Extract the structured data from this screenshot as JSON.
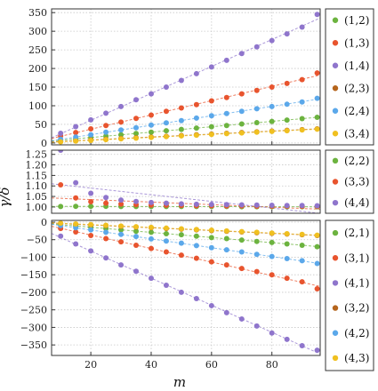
{
  "chart_data": [
    {
      "type": "scatter",
      "xlim": [
        7,
        96
      ],
      "ylim": [
        -5,
        360
      ],
      "xticks": [
        20,
        40,
        60,
        80
      ],
      "yticks": [
        0,
        50,
        100,
        150,
        200,
        250,
        300,
        350
      ],
      "ylabel": "",
      "x": [
        10,
        15,
        20,
        25,
        30,
        35,
        40,
        45,
        50,
        55,
        60,
        65,
        70,
        75,
        80,
        85,
        90,
        95
      ],
      "grid": true,
      "legend_position": "right",
      "series": [
        {
          "name": "(1,2)",
          "color": "#6cb33f",
          "values": [
            7.5,
            11,
            14.5,
            18.5,
            22,
            25.5,
            29,
            33,
            36.5,
            40,
            43.5,
            47,
            51,
            54.5,
            58,
            61.5,
            65.5,
            69
          ]
        },
        {
          "name": "(1,3)",
          "color": "#e8542e",
          "values": [
            19,
            28,
            38,
            47,
            56,
            66,
            75,
            85,
            94,
            103,
            113,
            122,
            132,
            141,
            150,
            160,
            170,
            188
          ]
        },
        {
          "name": "(1,4)",
          "color": "#8f75cc",
          "values": [
            26,
            44,
            62,
            80,
            98,
            116,
            132,
            150,
            168,
            186,
            204,
            222,
            240,
            258,
            275,
            293,
            311,
            345
          ]
        },
        {
          "name": "(2,3)",
          "color": "#b5651d",
          "values": [
            4,
            6,
            8,
            10,
            12,
            14,
            16,
            18,
            20,
            22,
            24,
            26,
            28,
            30,
            32,
            34,
            36,
            38
          ]
        },
        {
          "name": "(2,4)",
          "color": "#5ba8ea",
          "values": [
            10,
            16,
            22,
            29,
            35,
            41,
            48,
            54,
            60,
            67,
            73,
            79,
            85,
            92,
            98,
            104,
            110,
            120
          ]
        },
        {
          "name": "(3,4)",
          "color": "#f0c020",
          "values": [
            3,
            5,
            7,
            9,
            11,
            13,
            15,
            17,
            19,
            21,
            23,
            25,
            27,
            29,
            31,
            33,
            35,
            37
          ]
        }
      ]
    },
    {
      "type": "scatter",
      "xlim": [
        7,
        96
      ],
      "ylim": [
        0.97,
        1.27
      ],
      "xticks": [
        20,
        40,
        60,
        80
      ],
      "yticks": [
        1.0,
        1.05,
        1.1,
        1.15,
        1.2,
        1.25
      ],
      "ytick_labels": [
        "1.00",
        "1.05",
        "1.10",
        "1.15",
        "1.20",
        "1.25"
      ],
      "ylabel": "γ/δ",
      "x": [
        10,
        15,
        20,
        25,
        30,
        35,
        40,
        45,
        50,
        55,
        60,
        65,
        70,
        75,
        80,
        85,
        90,
        95
      ],
      "grid": true,
      "legend_position": "right",
      "series": [
        {
          "name": "(2,2)",
          "color": "#6cb33f",
          "values": [
            1.002,
            1.003,
            1.003,
            1.003,
            1.002,
            1.002,
            1.002,
            1.002,
            1.002,
            1.002,
            1.002,
            1.002,
            1.001,
            1.001,
            1.001,
            1.001,
            1.001,
            1.001
          ]
        },
        {
          "name": "(3,3)",
          "color": "#e8542e",
          "values": [
            1.105,
            1.043,
            1.025,
            1.018,
            1.014,
            1.011,
            1.009,
            1.008,
            1.007,
            1.006,
            1.006,
            1.005,
            1.005,
            1.004,
            1.004,
            1.004,
            1.003,
            1.003
          ]
        },
        {
          "name": "(4,4)",
          "color": "#8f75cc",
          "values": [
            1.27,
            1.115,
            1.065,
            1.045,
            1.033,
            1.026,
            1.021,
            1.018,
            1.015,
            1.013,
            1.012,
            1.011,
            1.01,
            1.009,
            1.008,
            1.007,
            1.007,
            1.006
          ]
        }
      ]
    },
    {
      "type": "scatter",
      "xlim": [
        7,
        96
      ],
      "ylim": [
        -380,
        5
      ],
      "xticks": [
        20,
        40,
        60,
        80
      ],
      "yticks": [
        0,
        -50,
        -100,
        -150,
        -200,
        -250,
        -300,
        -350
      ],
      "ylabel": "",
      "xlabel": "m",
      "x": [
        10,
        15,
        20,
        25,
        30,
        35,
        40,
        45,
        50,
        55,
        60,
        65,
        70,
        75,
        80,
        85,
        90,
        95
      ],
      "grid": true,
      "legend_position": "right",
      "series": [
        {
          "name": "(2,1)",
          "color": "#6cb33f",
          "values": [
            -7,
            -11,
            -15,
            -18,
            -22,
            -26,
            -29,
            -33,
            -36,
            -40,
            -44,
            -47,
            -51,
            -55,
            -58,
            -62,
            -66,
            -70
          ]
        },
        {
          "name": "(3,1)",
          "color": "#e8542e",
          "values": [
            -18,
            -28,
            -38,
            -47,
            -56,
            -66,
            -75,
            -85,
            -94,
            -103,
            -113,
            -122,
            -132,
            -141,
            -150,
            -160,
            -170,
            -190
          ]
        },
        {
          "name": "(4,1)",
          "color": "#8f75cc",
          "values": [
            -40,
            -62,
            -82,
            -102,
            -122,
            -140,
            -160,
            -180,
            -200,
            -218,
            -238,
            -258,
            -276,
            -296,
            -316,
            -334,
            -352,
            -365
          ]
        },
        {
          "name": "(3,2)",
          "color": "#b5651d",
          "values": [
            -4,
            -6,
            -8,
            -10,
            -12,
            -14,
            -16,
            -18,
            -20,
            -22,
            -24,
            -26,
            -28,
            -30,
            -32,
            -34,
            -36,
            -38
          ]
        },
        {
          "name": "(4,2)",
          "color": "#5ba8ea",
          "values": [
            -10,
            -16,
            -22,
            -29,
            -35,
            -41,
            -48,
            -54,
            -60,
            -67,
            -73,
            -79,
            -85,
            -92,
            -98,
            -104,
            -110,
            -118
          ]
        },
        {
          "name": "(4,3)",
          "color": "#f0c020",
          "values": [
            -3,
            -5,
            -7,
            -9,
            -11,
            -13,
            -15,
            -17,
            -19,
            -21,
            -23,
            -25,
            -27,
            -29,
            -31,
            -33,
            -35,
            -37
          ]
        }
      ]
    }
  ]
}
